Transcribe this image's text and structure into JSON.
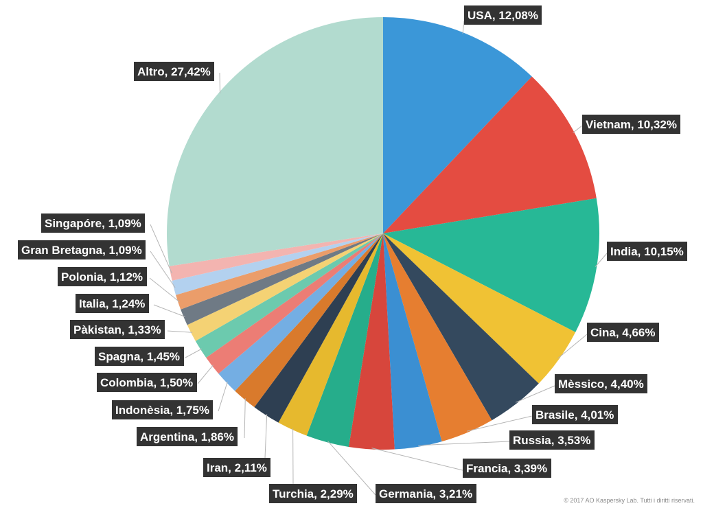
{
  "chart_data": {
    "type": "pie",
    "title": "",
    "slices": [
      {
        "label": "USA, 12,08%",
        "value": 12.08,
        "color": "#3b97d8"
      },
      {
        "label": "Vietnam, 10,32%",
        "value": 10.32,
        "color": "#e44c41"
      },
      {
        "label": "India, 10,15%",
        "value": 10.15,
        "color": "#27b896"
      },
      {
        "label": "Cina, 4,66%",
        "value": 4.66,
        "color": "#f0c234"
      },
      {
        "label": "Mèssico, 4,40%",
        "value": 4.4,
        "color": "#34495e"
      },
      {
        "label": "Brasile, 4,01%",
        "value": 4.01,
        "color": "#e67e30"
      },
      {
        "label": "Russia, 3,53%",
        "value": 3.53,
        "color": "#3b8fd2"
      },
      {
        "label": "Francia, 3,39%",
        "value": 3.39,
        "color": "#d7463c"
      },
      {
        "label": "Germania, 3,21%",
        "value": 3.21,
        "color": "#26ad8b"
      },
      {
        "label": "Turchia, 2,29%",
        "value": 2.29,
        "color": "#e6b92e"
      },
      {
        "label": "Iran, 2,11%",
        "value": 2.11,
        "color": "#2e3f52"
      },
      {
        "label": "Argentina, 1,86%",
        "value": 1.86,
        "color": "#d97a2c"
      },
      {
        "label": "Indonèsia, 1,75%",
        "value": 1.75,
        "color": "#74aee3"
      },
      {
        "label": "Colombia, 1,50%",
        "value": 1.5,
        "color": "#ec7d75"
      },
      {
        "label": "Spagna, 1,45%",
        "value": 1.45,
        "color": "#6ccaae"
      },
      {
        "label": "Pàkistan, 1,33%",
        "value": 1.33,
        "color": "#f4d274"
      },
      {
        "label": "Italia, 1,24%",
        "value": 1.24,
        "color": "#6f7a85"
      },
      {
        "label": "Polonia, 1,12%",
        "value": 1.12,
        "color": "#eb9d6a"
      },
      {
        "label": "Gran Bretagna, 1,09%",
        "value": 1.09,
        "color": "#b3d1ef"
      },
      {
        "label": "Singapóre, 1,09%",
        "value": 1.09,
        "color": "#f3b4b0"
      },
      {
        "label": "Altro, 27,42%",
        "value": 27.42,
        "color": "#b2dbcf"
      }
    ]
  },
  "footer": {
    "copyright": "© 2017 AO Kaspersky Lab. Tutti i diritti riservati."
  }
}
